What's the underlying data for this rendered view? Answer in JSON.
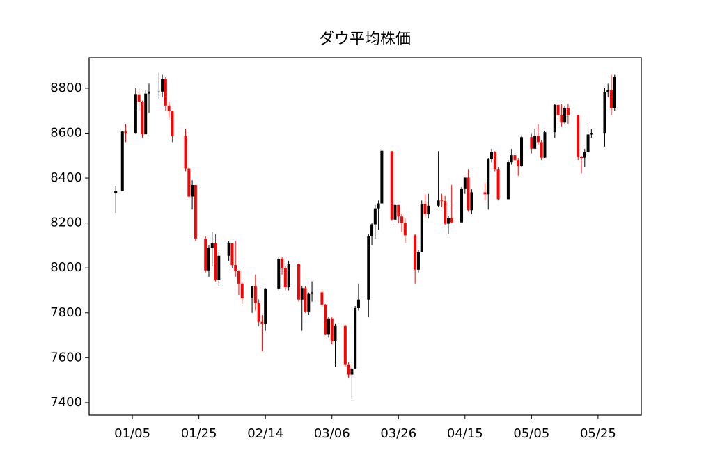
{
  "chart_data": {
    "type": "candlestick",
    "title": "ダウ平均株価",
    "x": [
      "12/31",
      "01/02",
      "01/03",
      "01/06",
      "01/07",
      "01/08",
      "01/09",
      "01/10",
      "01/13",
      "01/14",
      "01/15",
      "01/16",
      "01/17",
      "01/21",
      "01/22",
      "01/23",
      "01/24",
      "01/27",
      "01/28",
      "01/29",
      "01/30",
      "01/31",
      "02/03",
      "02/04",
      "02/05",
      "02/06",
      "02/07",
      "02/10",
      "02/11",
      "02/12",
      "02/13",
      "02/14",
      "02/18",
      "02/19",
      "02/20",
      "02/21",
      "02/24",
      "02/25",
      "02/26",
      "02/27",
      "02/28",
      "03/03",
      "03/04",
      "03/05",
      "03/06",
      "03/07",
      "03/10",
      "03/11",
      "03/12",
      "03/13",
      "03/14",
      "03/17",
      "03/18",
      "03/19",
      "03/20",
      "03/21",
      "03/24",
      "03/25",
      "03/26",
      "03/27",
      "03/28",
      "03/31",
      "04/01",
      "04/02",
      "04/03",
      "04/04",
      "04/07",
      "04/08",
      "04/09",
      "04/10",
      "04/11",
      "04/14",
      "04/15",
      "04/16",
      "04/17",
      "04/21",
      "04/22",
      "04/23",
      "04/24",
      "04/25",
      "04/28",
      "04/29",
      "04/30",
      "05/01",
      "05/02",
      "05/05",
      "05/06",
      "05/07",
      "05/08",
      "05/09",
      "05/12",
      "05/13",
      "05/14",
      "05/15",
      "05/16",
      "05/19",
      "05/20",
      "05/21",
      "05/22",
      "05/23",
      "05/27",
      "05/28",
      "05/29",
      "05/30"
    ],
    "open": [
      8332,
      8342,
      8607,
      8601,
      8773,
      8740,
      8595,
      8776,
      8785,
      8785,
      8842,
      8723,
      8697,
      8587,
      8442,
      8318,
      8369,
      8131,
      7989,
      8088,
      8110,
      7945,
      8054,
      8109,
      8013,
      7985,
      7930,
      7865,
      7920,
      7844,
      7760,
      7750,
      7908,
      8041,
      8000,
      7914,
      8018,
      7859,
      7910,
      7806,
      7884,
      7891,
      7837,
      7705,
      7775,
      7674,
      7741,
      7568,
      7525,
      7552,
      7821,
      7859,
      8141,
      8194,
      8265,
      8287,
      8520,
      8215,
      8280,
      8229,
      8201,
      8145,
      7992,
      8069,
      8285,
      8240,
      8277,
      8300,
      8298,
      8197,
      8221,
      8203,
      8351,
      8402,
      8257,
      8337,
      8328,
      8484,
      8516,
      8440,
      8306,
      8471,
      8502,
      8480,
      8454,
      8582,
      8531,
      8588,
      8560,
      8491,
      8604,
      8726,
      8679,
      8647,
      8713,
      8679,
      8493,
      8491,
      8516,
      8594,
      8601,
      8781,
      8793,
      8712
    ],
    "high": [
      8365,
      8610,
      8640,
      8800,
      8800,
      8745,
      8790,
      8820,
      8870,
      8860,
      8850,
      8740,
      8700,
      8620,
      8450,
      8390,
      8370,
      8140,
      8100,
      8160,
      8150,
      8070,
      8120,
      8110,
      8120,
      7990,
      7940,
      7920,
      7970,
      7860,
      7790,
      7910,
      8050,
      8050,
      8010,
      8030,
      8020,
      7920,
      7920,
      7890,
      7940,
      7900,
      7840,
      7780,
      7780,
      7750,
      7745,
      7580,
      7560,
      7830,
      7930,
      8150,
      8200,
      8280,
      8300,
      8530,
      8520,
      8300,
      8280,
      8240,
      8220,
      8150,
      8080,
      8300,
      8330,
      8330,
      8520,
      8330,
      8320,
      8230,
      8370,
      8360,
      8400,
      8440,
      8350,
      8380,
      8490,
      8530,
      8520,
      8450,
      8480,
      8530,
      8510,
      8490,
      8590,
      8600,
      8620,
      8640,
      8570,
      8610,
      8730,
      8730,
      8730,
      8720,
      8730,
      8680,
      8500,
      8530,
      8630,
      8620,
      8800,
      8820,
      8860,
      8860
    ],
    "low": [
      8245,
      8342,
      8560,
      8600,
      8700,
      8580,
      8595,
      8690,
      8750,
      8760,
      8700,
      8670,
      8560,
      8430,
      8310,
      8260,
      8120,
      7980,
      7960,
      8010,
      7940,
      7920,
      8030,
      8000,
      7960,
      7880,
      7840,
      7800,
      7810,
      7740,
      7630,
      7720,
      7900,
      7970,
      7900,
      7900,
      7850,
      7720,
      7800,
      7790,
      7850,
      7830,
      7700,
      7690,
      7660,
      7560,
      7560,
      7510,
      7416,
      7552,
      7810,
      7780,
      8100,
      8130,
      8170,
      8287,
      8210,
      8200,
      8200,
      8160,
      8110,
      7930,
      7980,
      8069,
      8230,
      8220,
      8270,
      8270,
      8190,
      8150,
      8200,
      8200,
      8330,
      8250,
      8240,
      8300,
      8260,
      8470,
      8430,
      8300,
      8306,
      8460,
      8460,
      8410,
      8450,
      8510,
      8530,
      8550,
      8480,
      8490,
      8580,
      8670,
      8630,
      8640,
      8640,
      8480,
      8420,
      8450,
      8510,
      8580,
      8540,
      8760,
      8680,
      8700
    ],
    "close": [
      8342,
      8607,
      8601,
      8774,
      8740,
      8595,
      8776,
      8785,
      8785,
      8842,
      8723,
      8697,
      8587,
      8442,
      8318,
      8369,
      8131,
      7989,
      8088,
      8110,
      7945,
      8054,
      8109,
      8013,
      7985,
      7930,
      7865,
      7920,
      7844,
      7760,
      7750,
      7908,
      8041,
      8000,
      7914,
      8018,
      7859,
      7910,
      7806,
      7884,
      7891,
      7837,
      7705,
      7775,
      7674,
      7741,
      7568,
      7525,
      7552,
      7821,
      7859,
      8141,
      8194,
      8265,
      8287,
      8522,
      8215,
      8280,
      8229,
      8201,
      8145,
      7992,
      8069,
      8285,
      8240,
      8277,
      8300,
      8298,
      8197,
      8221,
      8203,
      8351,
      8402,
      8257,
      8337,
      8328,
      8484,
      8516,
      8440,
      8306,
      8471,
      8502,
      8480,
      8454,
      8582,
      8531,
      8588,
      8560,
      8491,
      8604,
      8726,
      8679,
      8647,
      8713,
      8679,
      8493,
      8491,
      8516,
      8594,
      8601,
      8781,
      8793,
      8712,
      8850
    ],
    "up_color": "#000000",
    "down_color": "#ff0000",
    "xlim": [
      "12/23",
      "06/07"
    ],
    "xticks": [
      "01/05",
      "01/25",
      "02/14",
      "03/06",
      "03/26",
      "04/15",
      "05/05",
      "05/25"
    ],
    "ylim": [
      7344,
      8936
    ],
    "yticks": [
      7400,
      7600,
      7800,
      8000,
      8200,
      8400,
      8600,
      8800
    ]
  }
}
